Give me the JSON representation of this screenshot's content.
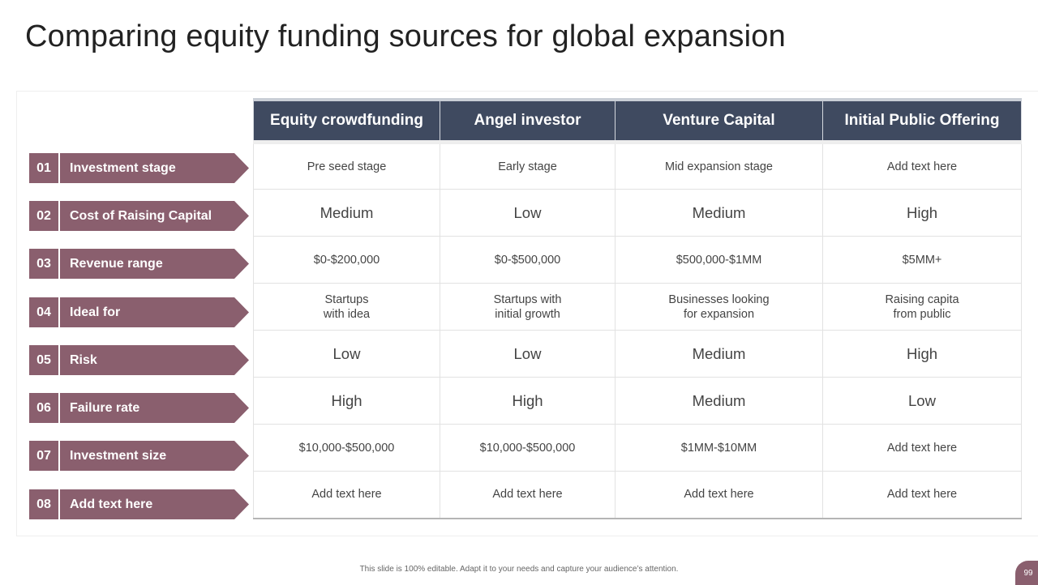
{
  "slide": {
    "title": "Comparing equity funding sources for global expansion",
    "footer": "This slide is 100% editable. Adapt it to your needs and capture your audience’s attention.",
    "page_number": "99"
  },
  "colors": {
    "header_bg": "#3f4a60",
    "label_bg": "#8a5f6e",
    "medium": "#f2c12e",
    "low": "#a8141b",
    "high": "#7a7a7a"
  },
  "table": {
    "columns": [
      "Equity crowdfunding",
      "Angel investor",
      "Venture Capital",
      "Initial Public Offering"
    ],
    "rows": [
      {
        "num": "01",
        "label": "Investment stage",
        "cells": [
          "Pre seed stage",
          "Early stage",
          "Mid expansion stage",
          "Add text here"
        ]
      },
      {
        "num": "02",
        "label": "Cost of Raising Capital",
        "cells": [
          "Medium",
          "Low",
          "Medium",
          "High"
        ]
      },
      {
        "num": "03",
        "label": "Revenue range",
        "cells": [
          "$0-$200,000",
          "$0-$500,000",
          "$500,000-$1MM",
          "$5MM+"
        ]
      },
      {
        "num": "04",
        "label": "Ideal for",
        "cells": [
          [
            "Startups",
            "with idea"
          ],
          [
            "Startups with",
            "initial growth"
          ],
          [
            "Businesses looking",
            "for expansion"
          ],
          [
            "Raising capita",
            "from public"
          ]
        ]
      },
      {
        "num": "05",
        "label": "Risk",
        "cells": [
          "Low",
          "Low",
          "Medium",
          "High"
        ]
      },
      {
        "num": "06",
        "label": "Failure rate",
        "cells": [
          "High",
          "High",
          "Medium",
          "Low"
        ]
      },
      {
        "num": "07",
        "label": "Investment size",
        "cells": [
          "$10,000-$500,000",
          "$10,000-$500,000",
          "$1MM-$10MM",
          "Add text here"
        ]
      },
      {
        "num": "08",
        "label": "Add text here",
        "cells": [
          "Add text here",
          "Add text here",
          "Add text here",
          "Add text here"
        ]
      }
    ]
  }
}
